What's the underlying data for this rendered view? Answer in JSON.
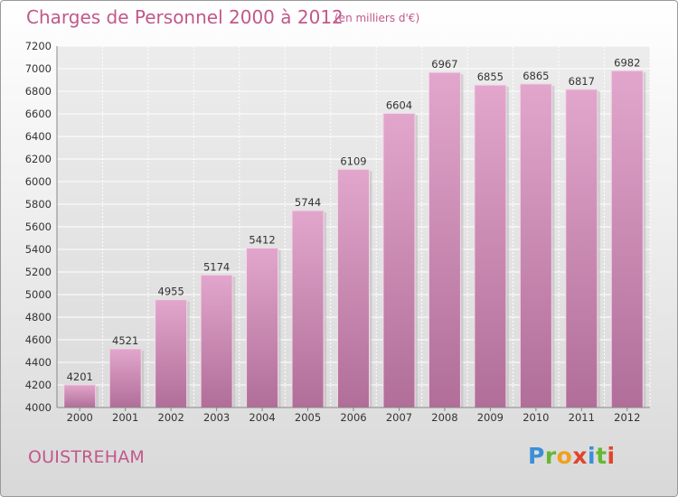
{
  "header": {
    "title": "Charges de Personnel 2000 à 2012",
    "subtitle": "(en milliers d'€)"
  },
  "footer": {
    "city": "OUISTREHAM",
    "logo_letters": [
      "P",
      "r",
      "o",
      "x",
      "i",
      "t",
      "i"
    ]
  },
  "colors": {
    "bar_top": "#e2a6cc",
    "bar_bottom": "#b06e98",
    "text_accent": "#c2588a"
  },
  "chart_data": {
    "type": "bar",
    "categories": [
      "2000",
      "2001",
      "2002",
      "2003",
      "2004",
      "2005",
      "2006",
      "2007",
      "2008",
      "2009",
      "2010",
      "2011",
      "2012"
    ],
    "values": [
      4201,
      4521,
      4955,
      5174,
      5412,
      5744,
      6109,
      6604,
      6967,
      6855,
      6865,
      6817,
      6982
    ],
    "title": "Charges de Personnel 2000 à 2012",
    "subtitle": "(en milliers d'€)",
    "ylim": [
      4000,
      7200
    ],
    "yticks": [
      4000,
      4200,
      4400,
      4600,
      4800,
      5000,
      5200,
      5400,
      5600,
      5800,
      6000,
      6200,
      6400,
      6600,
      6800,
      7000,
      7200
    ],
    "grid": true,
    "legend": "none",
    "data_labels": true
  }
}
